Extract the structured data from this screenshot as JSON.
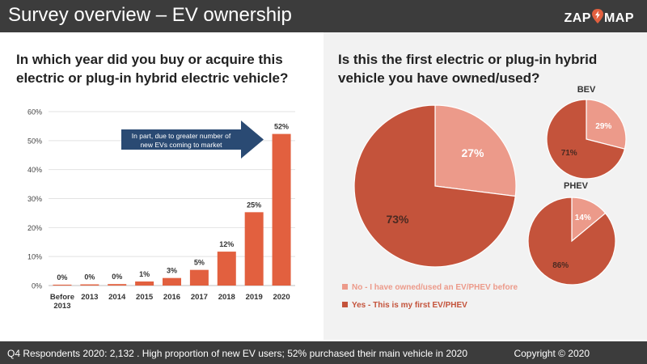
{
  "header": {
    "title": "Survey overview – EV ownership",
    "logo_left": "ZAP",
    "logo_right": "MAP"
  },
  "left_question": "In which year did you buy or acquire this electric or plug-in hybrid electric vehicle?",
  "right_question": "Is this the first electric or plug-in hybrid vehicle you have owned/used?",
  "footer": {
    "note": "Q4 Respondents  2020: 2,132 . High proportion of new EV users; 52% purchased their main vehicle in 2020",
    "copyright": "Copyright © 2020"
  },
  "colors": {
    "bar": "#e2603f",
    "no": "#ec9a8a",
    "yes": "#c4533b",
    "header": "#3c3c3c",
    "arrow": "#2a4a73"
  },
  "chart_data": [
    {
      "type": "bar",
      "categories": [
        "Before 2013",
        "2013",
        "2014",
        "2015",
        "2016",
        "2017",
        "2018",
        "2019",
        "2020"
      ],
      "category_lines": [
        [
          "Before",
          "2013"
        ],
        [
          "2013"
        ],
        [
          "2014"
        ],
        [
          "2015"
        ],
        [
          "2016"
        ],
        [
          "2017"
        ],
        [
          "2018"
        ],
        [
          "2019"
        ],
        [
          "2020"
        ]
      ],
      "values": [
        0.3,
        0.4,
        0.5,
        1.4,
        2.6,
        5.4,
        11.7,
        25.3,
        52.3
      ],
      "labels": [
        "0%",
        "0%",
        "0%",
        "1%",
        "3%",
        "5%",
        "12%",
        "25%",
        "52%"
      ],
      "yticks": [
        "0%",
        "10%",
        "20%",
        "30%",
        "40%",
        "50%",
        "60%"
      ],
      "ylim": [
        0,
        60
      ],
      "annotation": [
        "In part, due to greater number of",
        "new EVs coming to market"
      ]
    },
    {
      "type": "pie",
      "name": "",
      "slices": [
        {
          "label": "No - I have owned/used an EV/PHEV before",
          "value": 27,
          "text": "27%"
        },
        {
          "label": "Yes - This is my first EV/PHEV",
          "value": 73,
          "text": "73%"
        }
      ],
      "legend_position": "bottom"
    },
    {
      "type": "pie",
      "name": "BEV",
      "slices": [
        {
          "label": "No",
          "value": 29,
          "text": "29%"
        },
        {
          "label": "Yes",
          "value": 71,
          "text": "71%"
        }
      ]
    },
    {
      "type": "pie",
      "name": "PHEV",
      "slices": [
        {
          "label": "No",
          "value": 14,
          "text": "14%"
        },
        {
          "label": "Yes",
          "value": 86,
          "text": "86%"
        }
      ]
    }
  ]
}
